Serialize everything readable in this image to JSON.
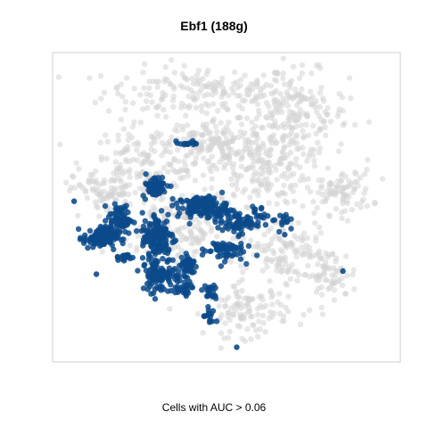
{
  "chart_data": {
    "type": "scatter",
    "title": "Ebf1 (188g)",
    "caption": "Cells with AUC > 0.06",
    "colors": {
      "background_cells": "#d3d3d3",
      "active_cells": "#0b4a8b",
      "frame": "#cfcfcf"
    },
    "xlim": [
      0,
      100
    ],
    "ylim": [
      0,
      100
    ],
    "background_clusters": [
      {
        "cx": 43,
        "cy": 88,
        "rx": 24,
        "ry": 7,
        "n": 180
      },
      {
        "cx": 70,
        "cy": 80,
        "rx": 13,
        "ry": 12,
        "n": 200
      },
      {
        "cx": 27,
        "cy": 64,
        "rx": 15,
        "ry": 11,
        "n": 160
      },
      {
        "cx": 47,
        "cy": 70,
        "rx": 12,
        "ry": 8,
        "n": 140
      },
      {
        "cx": 60,
        "cy": 63,
        "rx": 11,
        "ry": 10,
        "n": 140
      },
      {
        "cx": 15,
        "cy": 55,
        "rx": 8,
        "ry": 6,
        "n": 80
      },
      {
        "cx": 83,
        "cy": 55,
        "rx": 8,
        "ry": 6,
        "n": 90
      },
      {
        "cx": 80,
        "cy": 28,
        "rx": 7,
        "ry": 7,
        "n": 80
      },
      {
        "cx": 56,
        "cy": 16,
        "rx": 10,
        "ry": 7,
        "n": 110
      },
      {
        "cx": 40,
        "cy": 42,
        "rx": 18,
        "ry": 12,
        "n": 200
      },
      {
        "cx": 67,
        "cy": 37,
        "rx": 8,
        "ry": 9,
        "n": 100
      }
    ],
    "active_clusters": [
      {
        "cx": 13,
        "cy": 40,
        "rx": 4,
        "ry": 3,
        "n": 110
      },
      {
        "cx": 19,
        "cy": 46,
        "rx": 3,
        "ry": 4,
        "n": 70
      },
      {
        "cx": 30,
        "cy": 40,
        "rx": 4,
        "ry": 7,
        "n": 140
      },
      {
        "cx": 31,
        "cy": 28,
        "rx": 5,
        "ry": 5,
        "n": 100
      },
      {
        "cx": 29,
        "cy": 57,
        "rx": 3,
        "ry": 3,
        "n": 60
      },
      {
        "cx": 43,
        "cy": 50,
        "rx": 6,
        "ry": 3,
        "n": 130
      },
      {
        "cx": 53,
        "cy": 45,
        "rx": 5,
        "ry": 3,
        "n": 70
      },
      {
        "cx": 49,
        "cy": 36,
        "rx": 5,
        "ry": 3,
        "n": 60
      },
      {
        "cx": 39,
        "cy": 31,
        "rx": 2,
        "ry": 3,
        "n": 40
      },
      {
        "cx": 37,
        "cy": 23,
        "rx": 3,
        "ry": 2,
        "n": 30
      },
      {
        "cx": 45,
        "cy": 22,
        "rx": 2,
        "ry": 2,
        "n": 20
      },
      {
        "cx": 45,
        "cy": 14,
        "rx": 1.5,
        "ry": 3,
        "n": 16
      },
      {
        "cx": 39,
        "cy": 71,
        "rx": 3,
        "ry": 0.6,
        "n": 14
      },
      {
        "cx": 66,
        "cy": 46,
        "rx": 2,
        "ry": 3,
        "n": 14
      },
      {
        "cx": 60,
        "cy": 48,
        "rx": 2,
        "ry": 2,
        "n": 14
      },
      {
        "cx": 20,
        "cy": 34,
        "rx": 2,
        "ry": 2,
        "n": 16
      }
    ],
    "active_points": [
      {
        "x": 5.5,
        "y": 52
      },
      {
        "x": 84,
        "y": 29
      },
      {
        "x": 53,
        "y": 4
      },
      {
        "x": 67,
        "y": 41
      },
      {
        "x": 12,
        "y": 28
      }
    ]
  }
}
